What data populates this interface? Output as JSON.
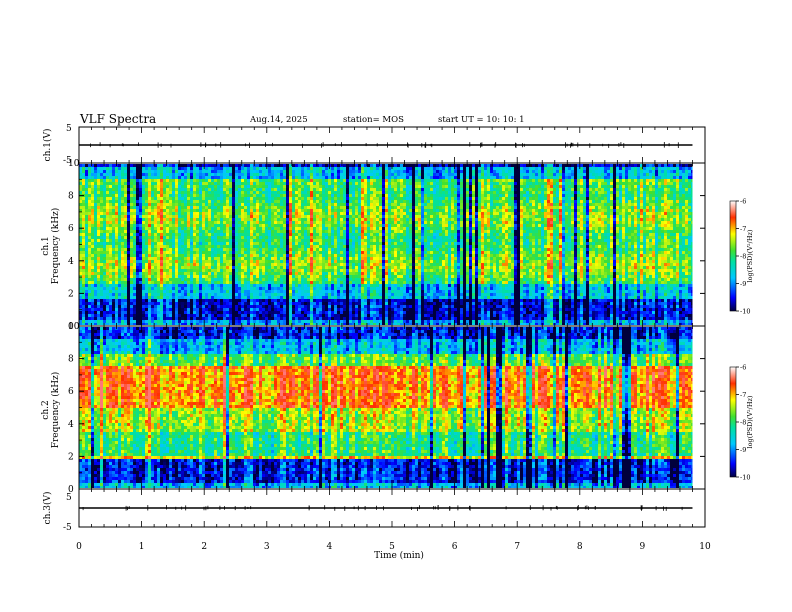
{
  "header": {
    "title": "VLF Spectra",
    "date": "Aug.14, 2025",
    "station": "station= MOS",
    "start": "start  UT =    10: 10: 1"
  },
  "chart_data": [
    {
      "type": "line",
      "name": "ch1-waveform",
      "ylabel": "ch.1(V)",
      "ylim": [
        -5,
        5
      ],
      "yticks": [
        "5",
        "-5"
      ],
      "x": [
        0,
        9.8
      ],
      "y": [
        0,
        0
      ]
    },
    {
      "type": "heatmap",
      "name": "ch1-spectrogram",
      "ylabel_line1": "ch.1",
      "ylabel_line2": "Frequency  (kHz)",
      "ylim": [
        0,
        10
      ],
      "yticks": [
        "0",
        "2",
        "4",
        "6",
        "8",
        "10"
      ],
      "xlim": [
        0,
        10
      ],
      "data_end_min": 9.8,
      "colorbar": {
        "label": "log(PSD)(V²/Hz)",
        "range": [
          -10,
          -6
        ],
        "ticks": [
          "-6",
          "-7",
          "-8",
          "-9",
          "-10"
        ]
      }
    },
    {
      "type": "heatmap",
      "name": "ch2-spectrogram",
      "ylabel_line1": "ch.2",
      "ylabel_line2": "Frequency  (kHz)",
      "ylim": [
        0,
        10
      ],
      "yticks": [
        "0",
        "2",
        "4",
        "6",
        "8",
        "10"
      ],
      "xlim": [
        0,
        10
      ],
      "data_end_min": 9.8,
      "colorbar": {
        "label": "log(PSD)(V²/Hz)",
        "range": [
          -10,
          -6
        ],
        "ticks": [
          "-6",
          "-7",
          "-8",
          "-9",
          "-10"
        ]
      }
    },
    {
      "type": "line",
      "name": "ch3-waveform",
      "ylabel": "ch.3(V)",
      "ylim": [
        -5,
        5
      ],
      "yticks": [
        "5",
        "-5"
      ],
      "x": [
        0,
        9.8
      ],
      "y": [
        0,
        0
      ]
    }
  ],
  "xaxis": {
    "label": "Time  (min)",
    "range": [
      0,
      10
    ],
    "ticks": [
      "0",
      "1",
      "2",
      "3",
      "4",
      "5",
      "6",
      "7",
      "8",
      "9",
      "10"
    ]
  }
}
